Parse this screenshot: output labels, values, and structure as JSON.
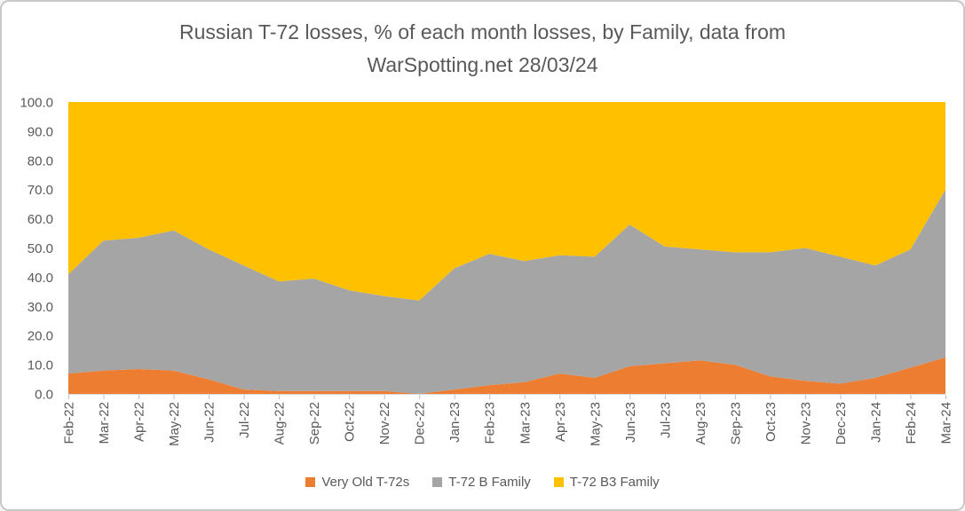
{
  "title": {
    "line1": "Russian T-72 losses, % of each month losses, by Family, data from",
    "line2": "WarSpotting.net 28/03/24",
    "color": "#595959"
  },
  "axis": {
    "label_color": "#595959",
    "tick_color": "#bfbfbf",
    "axis_line_color": "#d9d9d9",
    "y_tick_labels": [
      "0.0",
      "10.0",
      "20.0",
      "30.0",
      "40.0",
      "50.0",
      "60.0",
      "70.0",
      "80.0",
      "90.0",
      "100.0"
    ]
  },
  "legend": {
    "items": [
      {
        "label": "Very Old T-72s",
        "color": "#ED7D31"
      },
      {
        "label": "T-72 B Family",
        "color": "#A5A5A5"
      },
      {
        "label": "T-72 B3 Family",
        "color": "#FFC000"
      }
    ]
  },
  "chart_data": {
    "type": "area",
    "stacking": "percent",
    "title": "Russian T-72 losses, % of each month losses, by Family, data from WarSpotting.net 28/03/24",
    "xlabel": "",
    "ylabel": "",
    "ylim": [
      0,
      100
    ],
    "ytick_step": 10,
    "grid": false,
    "legend_position": "bottom",
    "categories": [
      "Feb-22",
      "Mar-22",
      "Apr-22",
      "May-22",
      "Jun-22",
      "Jul-22",
      "Aug-22",
      "Sep-22",
      "Oct-22",
      "Nov-22",
      "Dec-22",
      "Jan-23",
      "Feb-23",
      "Mar-23",
      "Apr-23",
      "May-23",
      "Jun-23",
      "Jul-23",
      "Aug-23",
      "Sep-23",
      "Oct-23",
      "Nov-23",
      "Dec-23",
      "Jan-24",
      "Feb-24",
      "Mar-24"
    ],
    "series": [
      {
        "name": "Very Old T-72s",
        "color": "#ED7D31",
        "values": [
          7,
          8,
          8.5,
          8,
          5,
          1.5,
          1,
          1,
          1,
          1,
          0,
          1.5,
          3,
          4,
          7,
          5.5,
          9.5,
          10.5,
          11.5,
          10,
          6,
          4.5,
          3.5,
          5.5,
          9,
          12.5
        ]
      },
      {
        "name": "T-72 B Family",
        "color": "#A5A5A5",
        "values": [
          34,
          44.5,
          45,
          48,
          44.5,
          42.5,
          37.5,
          38.5,
          34.5,
          32.5,
          32,
          41.5,
          45,
          41.5,
          40.5,
          41.5,
          48.5,
          40,
          38,
          38.5,
          42.5,
          45.5,
          43.5,
          38.5,
          40.5,
          57.5
        ]
      },
      {
        "name": "T-72 B3 Family",
        "color": "#FFC000",
        "values": [
          59,
          47.5,
          46.5,
          44,
          50.5,
          56,
          61.5,
          60.5,
          64.5,
          66.5,
          68,
          57,
          52,
          54.5,
          52.5,
          53,
          42,
          49.5,
          50.5,
          51.5,
          51.5,
          50,
          53,
          56,
          50.5,
          30
        ]
      }
    ]
  }
}
